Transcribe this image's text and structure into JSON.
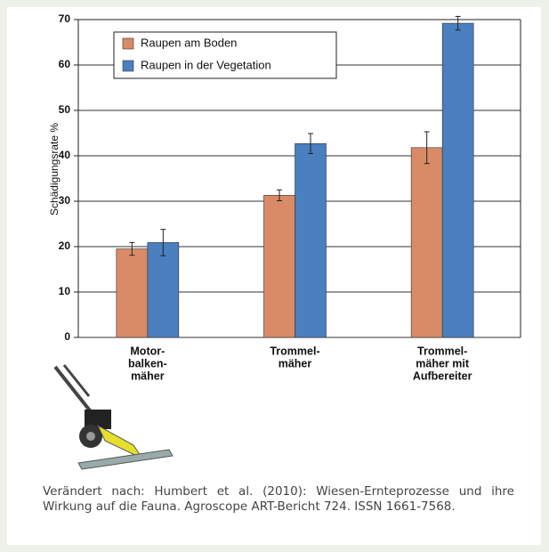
{
  "chart_data": {
    "type": "bar",
    "y_label": "Schädigungsrate %",
    "categories": [
      [
        "Motor-",
        "balken-",
        "mäher"
      ],
      [
        "Trommel-",
        "mäher"
      ],
      [
        "Trommel-",
        "mäher mit",
        "Aufbereiter"
      ]
    ],
    "series": [
      {
        "name": "Raupen am Boden",
        "color": "#d98a66",
        "values": [
          19.5,
          31.3,
          41.8
        ],
        "errors": [
          1.4,
          1.2,
          3.5
        ]
      },
      {
        "name": "Raupen in der Vegetation",
        "color": "#4a7fc0",
        "values": [
          20.9,
          42.7,
          69.2
        ],
        "errors": [
          2.9,
          2.2,
          1.5
        ]
      }
    ],
    "ylim": [
      0,
      70
    ],
    "yticks": [
      0,
      10,
      20,
      30,
      40,
      50,
      60,
      70
    ],
    "grid": true,
    "legend": "top-left"
  },
  "caption": "Verändert nach: Humbert et al. (2010): Wiesen-Ernteprozesse und ihre Wirkung auf die Fauna. Agroscope ART-Bericht 724. ISSN 1661-7568."
}
